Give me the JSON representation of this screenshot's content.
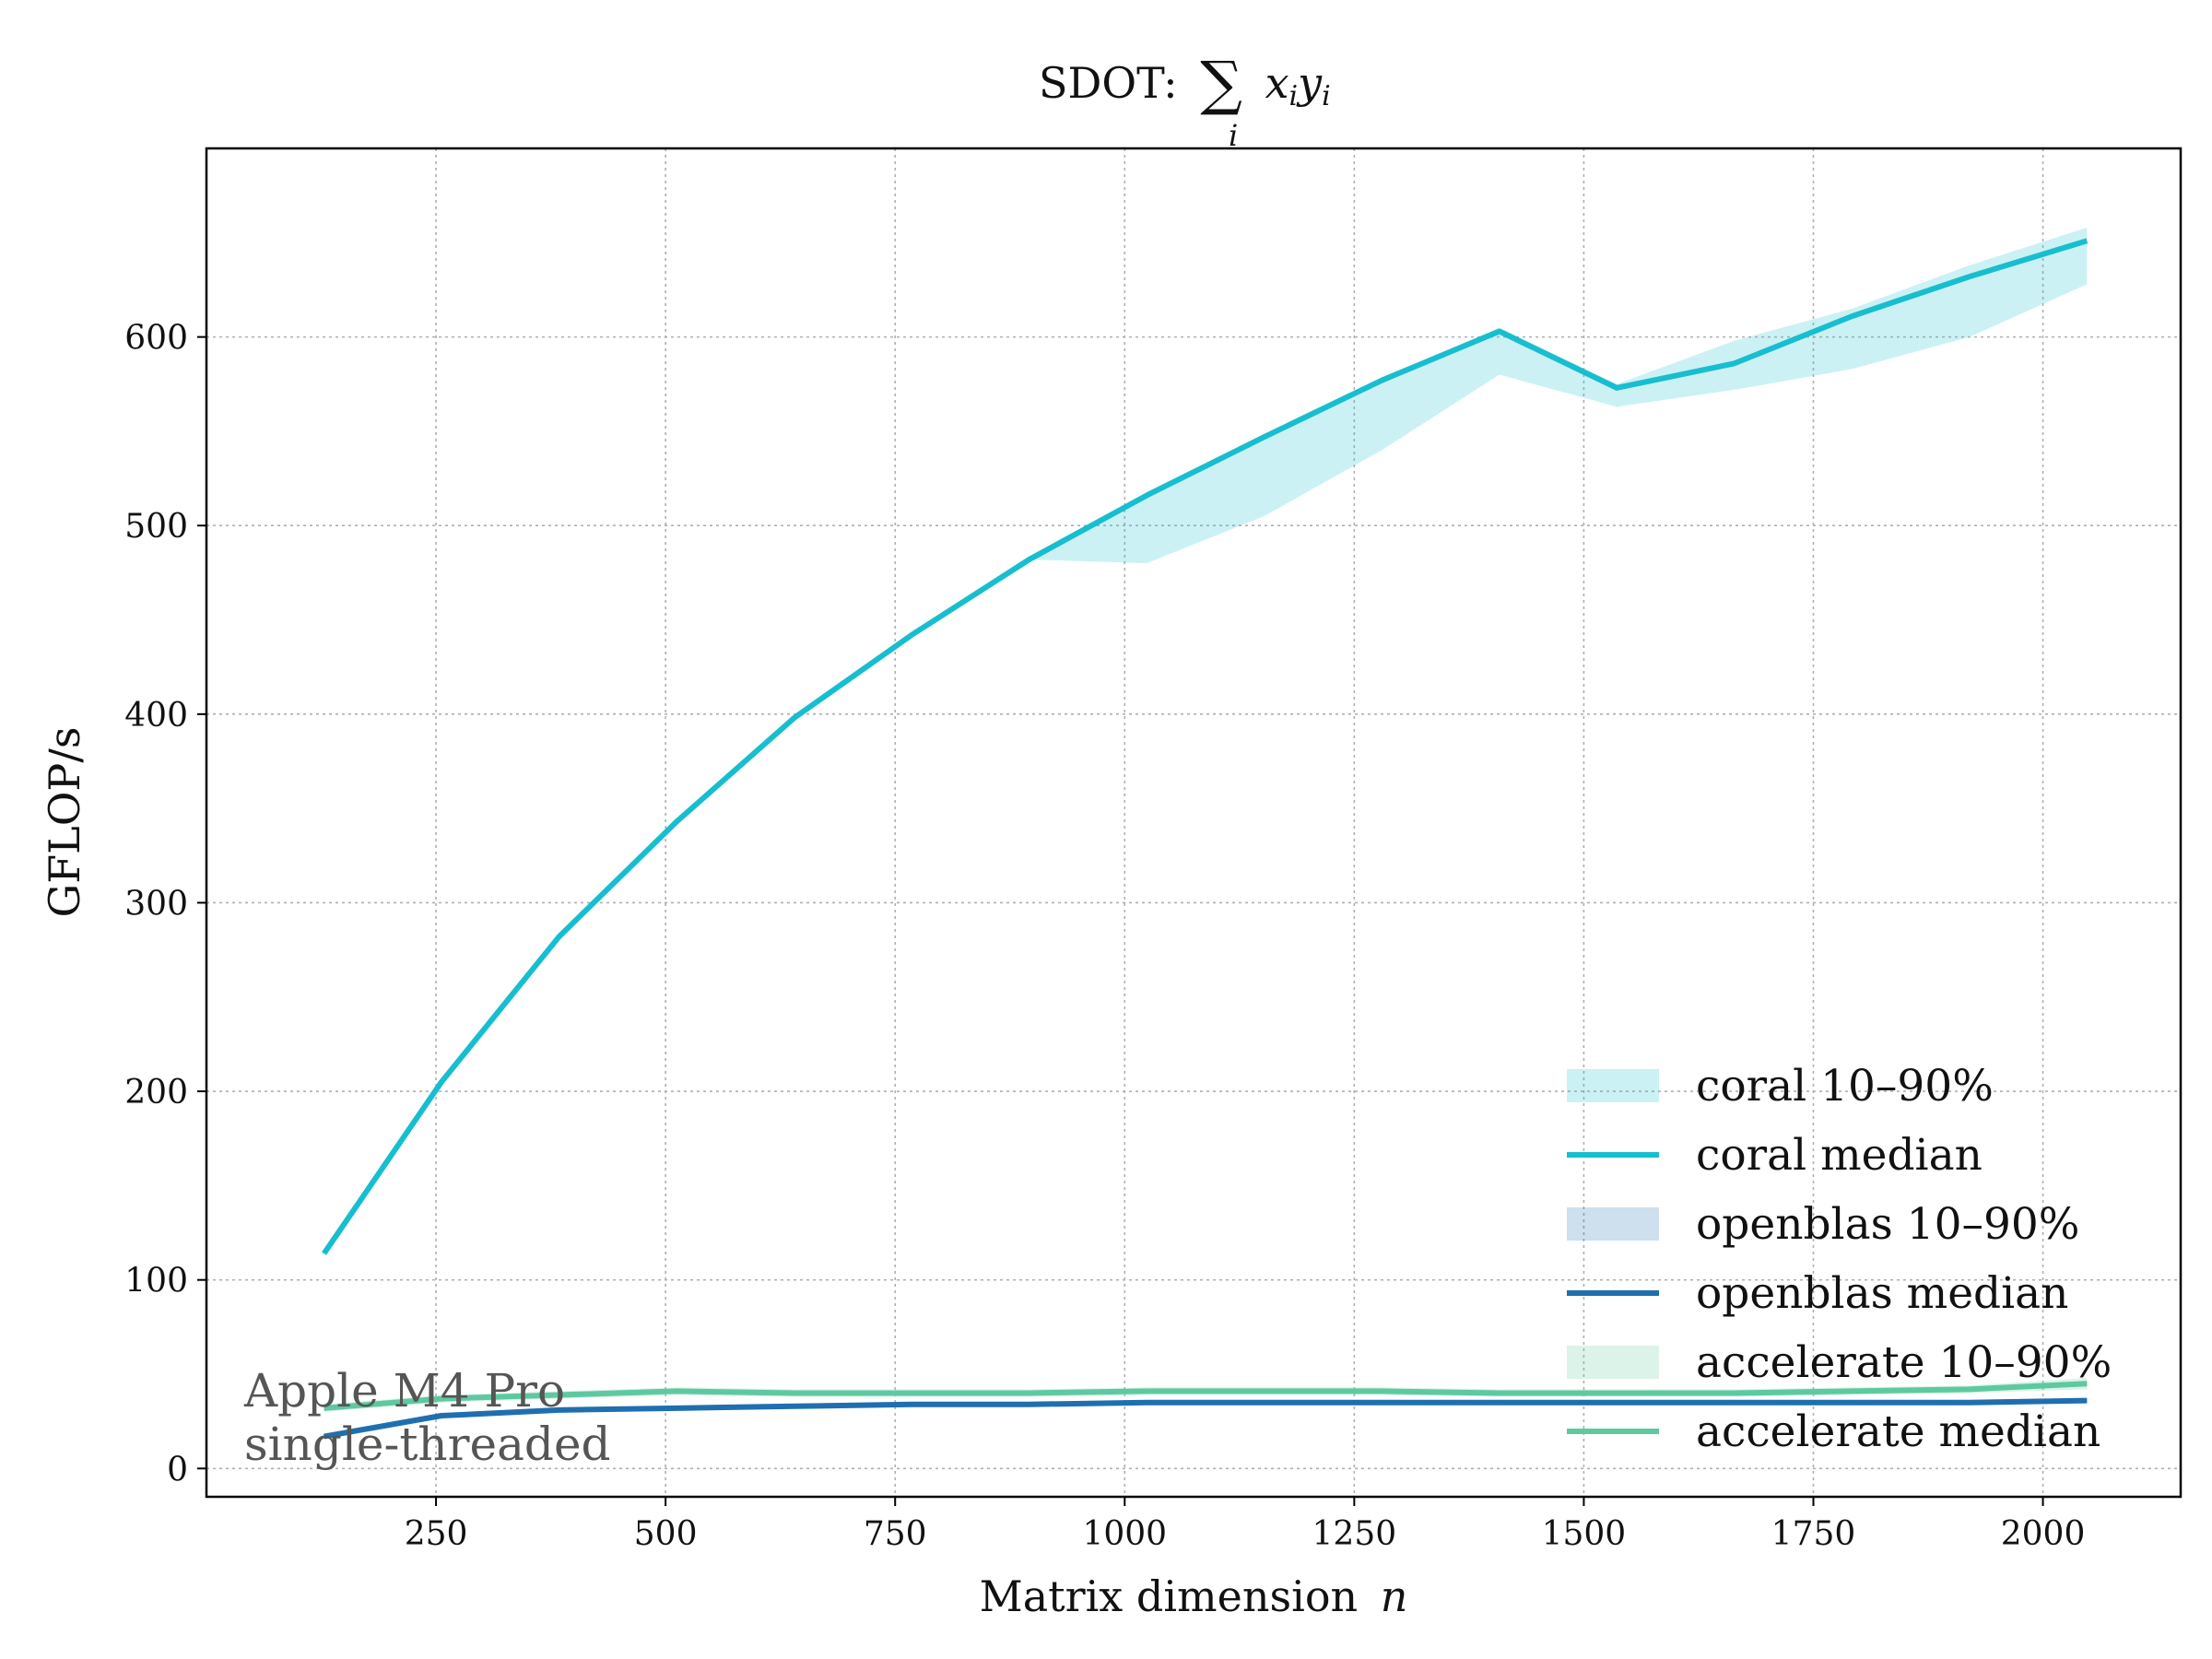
{
  "chart_data": {
    "type": "line",
    "title": "SDOT: ∑ᵢ xᵢyᵢ",
    "title_parts": {
      "prefix": "SDOT:",
      "sum": "∑",
      "sum_index": "i",
      "x": "x",
      "y": "y",
      "sub": "i"
    },
    "xlabel": "Matrix dimension n",
    "xlabel_parts": {
      "text": "Matrix dimension",
      "var": "n"
    },
    "ylabel": "GFLOP/s",
    "xlim": [
      0,
      2150
    ],
    "ylim": [
      -15,
      700
    ],
    "x_ticks": [
      250,
      500,
      750,
      1000,
      1250,
      1500,
      1750,
      2000
    ],
    "y_ticks": [
      0,
      100,
      200,
      300,
      400,
      500,
      600
    ],
    "grid": true,
    "legend_placement": "lower-right",
    "annotation": [
      "Apple M4 Pro",
      "single-threaded"
    ],
    "x": [
      128,
      256,
      384,
      512,
      640,
      768,
      896,
      1024,
      1152,
      1280,
      1408,
      1536,
      1664,
      1792,
      1920,
      2048
    ],
    "series": [
      {
        "name": "coral median",
        "color": "#17becf",
        "values": [
          114,
          205,
          282,
          343,
          398,
          442,
          482,
          516,
          547,
          577,
          603,
          573,
          586,
          611,
          632,
          651
        ]
      },
      {
        "name": "openblas median",
        "color": "#1f6fb0",
        "values": [
          17,
          28,
          31,
          32,
          33,
          34,
          34,
          35,
          35,
          35,
          35,
          35,
          35,
          35,
          35,
          36
        ]
      },
      {
        "name": "accelerate median",
        "color": "#5ec9a0",
        "values": [
          32,
          37,
          39,
          41,
          40,
          40,
          40,
          41,
          41,
          41,
          40,
          40,
          40,
          41,
          42,
          45
        ]
      }
    ],
    "bands": [
      {
        "name": "coral 10–90%",
        "color": "#17becf",
        "low": [
          114,
          205,
          282,
          343,
          398,
          442,
          482,
          480,
          505,
          540,
          580,
          563,
          572,
          583,
          600,
          628
        ],
        "high": [
          114,
          205,
          282,
          343,
          398,
          442,
          482,
          516,
          548,
          578,
          605,
          575,
          598,
          615,
          638,
          658
        ]
      },
      {
        "name": "openblas 10–90%",
        "color": "#1f6fb0",
        "low": [
          16,
          27,
          30,
          31,
          32,
          33,
          33,
          34,
          34,
          34,
          34,
          34,
          34,
          34,
          34,
          35
        ],
        "high": [
          18,
          29,
          32,
          33,
          34,
          35,
          35,
          36,
          36,
          36,
          36,
          36,
          36,
          36,
          36,
          37
        ]
      },
      {
        "name": "accelerate 10–90%",
        "color": "#5ec9a0",
        "low": [
          30,
          35,
          37,
          39,
          38,
          38,
          38,
          39,
          39,
          39,
          38,
          38,
          38,
          39,
          40,
          42
        ],
        "high": [
          34,
          39,
          41,
          43,
          42,
          42,
          42,
          43,
          43,
          43,
          42,
          42,
          42,
          43,
          44,
          48
        ]
      }
    ],
    "legend": [
      {
        "label": "coral 10–90%",
        "kind": "band",
        "color": "#17becf"
      },
      {
        "label": "coral median",
        "kind": "line",
        "color": "#17becf"
      },
      {
        "label": "openblas 10–90%",
        "kind": "band",
        "color": "#1f6fb0"
      },
      {
        "label": "openblas median",
        "kind": "line",
        "color": "#1f6fb0"
      },
      {
        "label": "accelerate 10–90%",
        "kind": "band",
        "color": "#5ec9a0"
      },
      {
        "label": "accelerate median",
        "kind": "line",
        "color": "#5ec9a0"
      }
    ]
  }
}
